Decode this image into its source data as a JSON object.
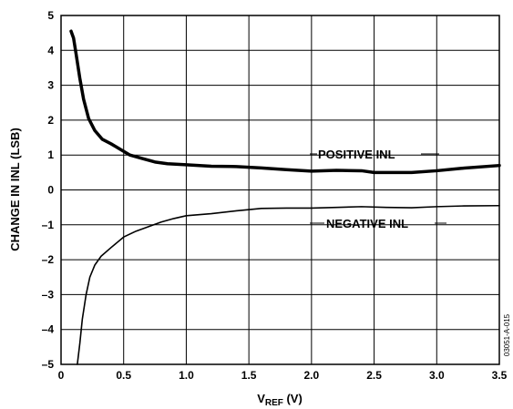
{
  "chart_data": {
    "type": "line",
    "xlabel": "V",
    "xlabel_subscript": "REF",
    "xlabel_suffix": " (V)",
    "ylabel": "CHANGE IN INL (LSB)",
    "xlim": [
      0,
      3.5
    ],
    "ylim": [
      -5,
      5
    ],
    "x_ticks": [
      0,
      0.5,
      1.0,
      1.5,
      2.0,
      2.5,
      3.0,
      3.5
    ],
    "x_tick_labels": [
      "0",
      "0.5",
      "1.0",
      "1.5",
      "2.0",
      "2.5",
      "3.0",
      "3.5"
    ],
    "y_ticks": [
      -5,
      -4,
      -3,
      -2,
      -1,
      0,
      1,
      2,
      3,
      4,
      5
    ],
    "y_tick_labels": [
      "–5",
      "–4",
      "–3",
      "–2",
      "–1",
      "0",
      "1",
      "2",
      "3",
      "4",
      "5"
    ],
    "grid": true,
    "figure_id": "03051-A-015",
    "series": [
      {
        "name": "POSITIVE INL",
        "color": "#000000",
        "points": [
          [
            0.08,
            4.55
          ],
          [
            0.1,
            4.35
          ],
          [
            0.12,
            3.9
          ],
          [
            0.15,
            3.2
          ],
          [
            0.18,
            2.6
          ],
          [
            0.22,
            2.05
          ],
          [
            0.27,
            1.7
          ],
          [
            0.33,
            1.45
          ],
          [
            0.4,
            1.32
          ],
          [
            0.48,
            1.15
          ],
          [
            0.55,
            1.0
          ],
          [
            0.65,
            0.9
          ],
          [
            0.75,
            0.8
          ],
          [
            0.85,
            0.75
          ],
          [
            1.0,
            0.72
          ],
          [
            1.2,
            0.68
          ],
          [
            1.4,
            0.67
          ],
          [
            1.6,
            0.63
          ],
          [
            1.8,
            0.58
          ],
          [
            2.0,
            0.54
          ],
          [
            2.2,
            0.56
          ],
          [
            2.4,
            0.55
          ],
          [
            2.5,
            0.5
          ],
          [
            2.8,
            0.5
          ],
          [
            3.0,
            0.55
          ],
          [
            3.2,
            0.62
          ],
          [
            3.5,
            0.7
          ]
        ]
      },
      {
        "name": "NEGATIVE INL",
        "color": "#000000",
        "points": [
          [
            0.13,
            -5.0
          ],
          [
            0.15,
            -4.4
          ],
          [
            0.17,
            -3.7
          ],
          [
            0.2,
            -3.0
          ],
          [
            0.23,
            -2.5
          ],
          [
            0.27,
            -2.15
          ],
          [
            0.32,
            -1.9
          ],
          [
            0.4,
            -1.65
          ],
          [
            0.5,
            -1.35
          ],
          [
            0.6,
            -1.18
          ],
          [
            0.7,
            -1.05
          ],
          [
            0.8,
            -0.92
          ],
          [
            0.9,
            -0.82
          ],
          [
            1.0,
            -0.74
          ],
          [
            1.2,
            -0.68
          ],
          [
            1.4,
            -0.6
          ],
          [
            1.6,
            -0.53
          ],
          [
            1.8,
            -0.52
          ],
          [
            2.0,
            -0.52
          ],
          [
            2.2,
            -0.5
          ],
          [
            2.4,
            -0.48
          ],
          [
            2.6,
            -0.5
          ],
          [
            2.8,
            -0.51
          ],
          [
            3.0,
            -0.48
          ],
          [
            3.2,
            -0.46
          ],
          [
            3.5,
            -0.45
          ]
        ]
      }
    ]
  }
}
